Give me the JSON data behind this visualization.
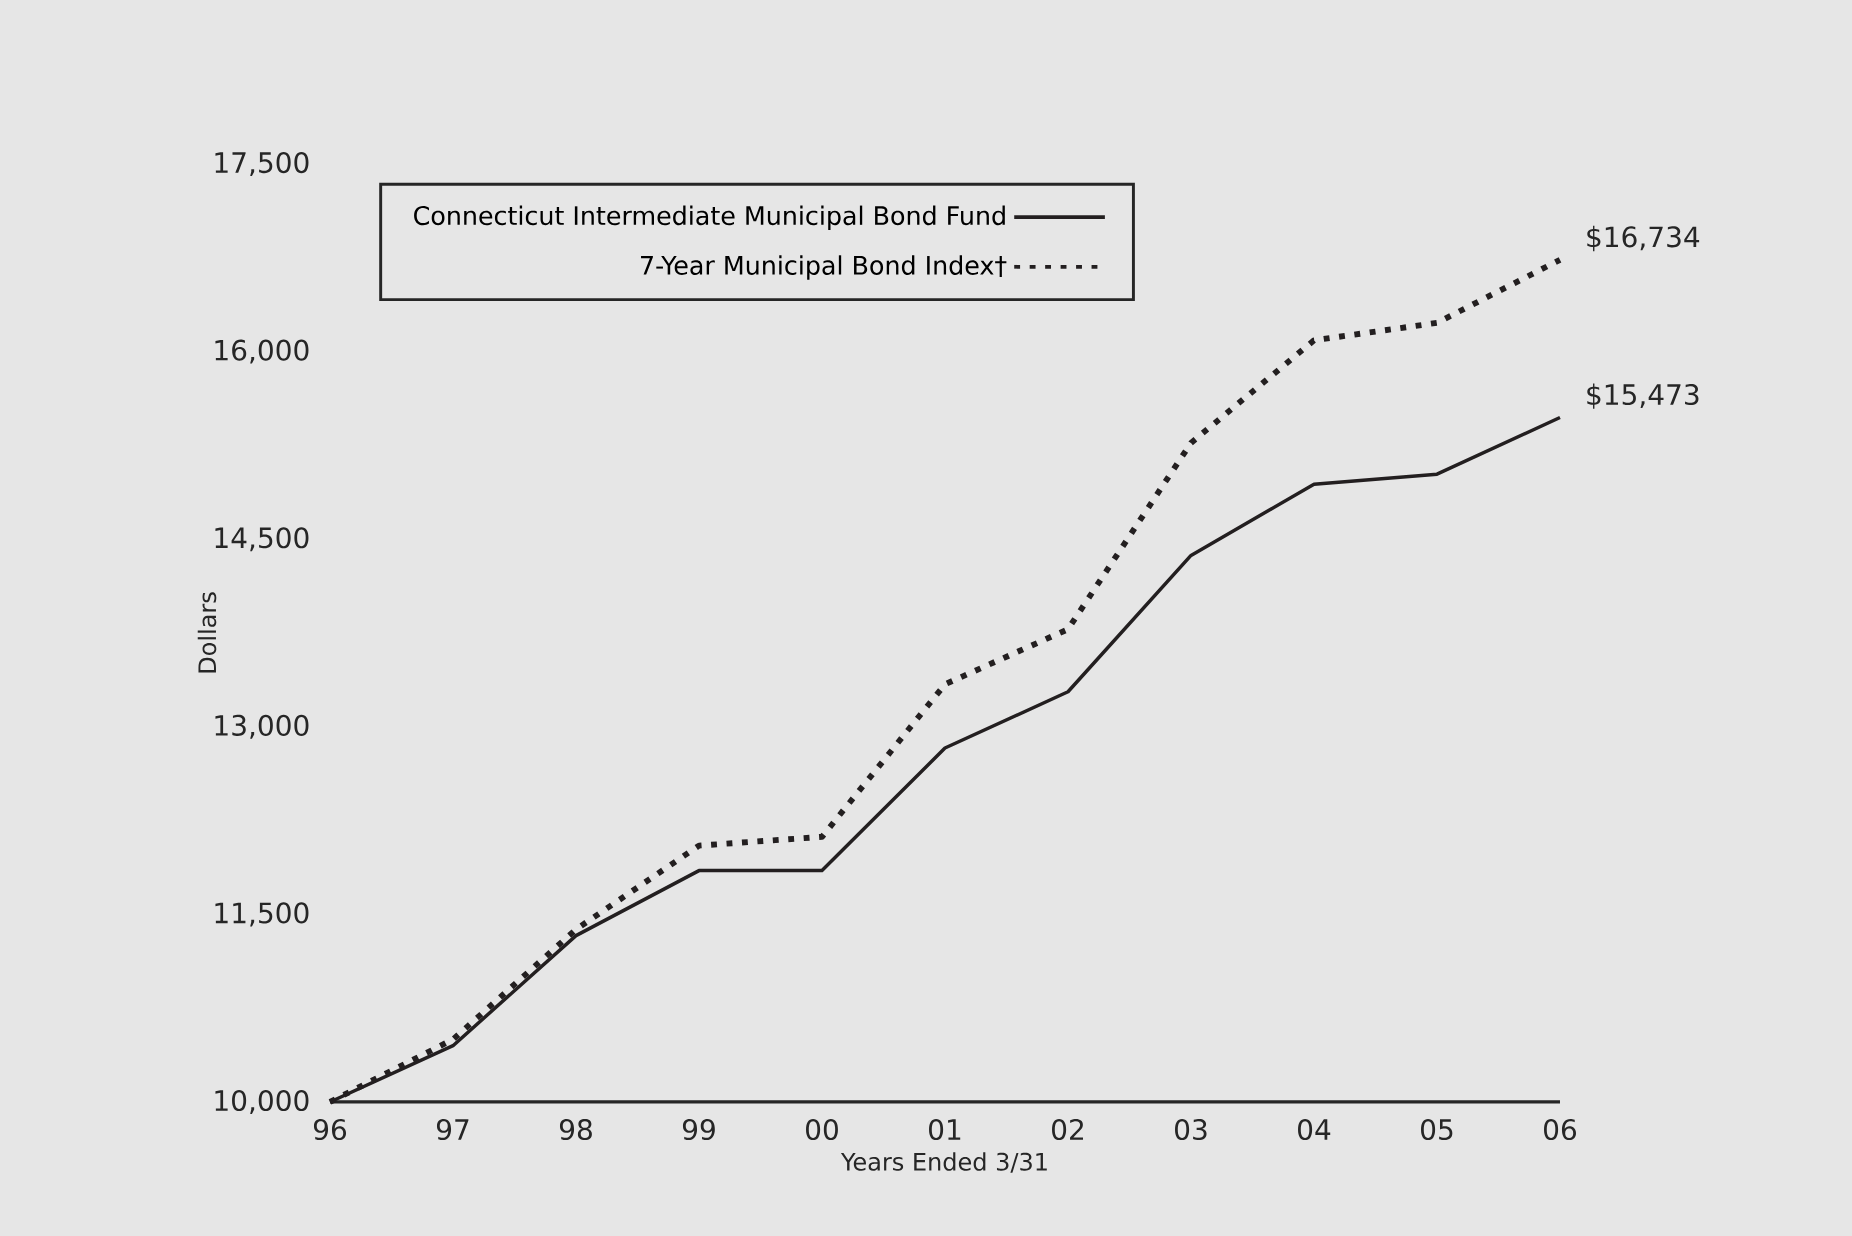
{
  "chart_data": {
    "type": "line",
    "xlabel": "Years Ended 3/31",
    "ylabel": "Dollars",
    "categories": [
      "96",
      "97",
      "98",
      "99",
      "00",
      "01",
      "02",
      "03",
      "04",
      "05",
      "06"
    ],
    "series": [
      {
        "name": "Connecticut Intermediate Municipal Bond Fund",
        "color": "#231f20",
        "line_style": "solid",
        "values": [
          10000,
          10450,
          11330,
          11850,
          11850,
          12830,
          13280,
          14370,
          14940,
          15020,
          15473
        ],
        "value_labels": [
          null,
          null,
          null,
          null,
          null,
          null,
          null,
          null,
          null,
          null,
          "$15,473"
        ]
      },
      {
        "name": "7-Year Municipal Bond Index†",
        "color": "#231f20",
        "line_style": "dotted",
        "values": [
          10000,
          10500,
          11380,
          12050,
          12120,
          13340,
          13780,
          15270,
          16090,
          16230,
          16734
        ],
        "value_labels": [
          null,
          null,
          null,
          null,
          null,
          null,
          null,
          null,
          null,
          null,
          "$16,734"
        ]
      }
    ],
    "ylim": [
      10000,
      17500
    ],
    "yticks": [
      {
        "value": 10000,
        "label": "10,000"
      },
      {
        "value": 11500,
        "label": "11,500"
      },
      {
        "value": 13000,
        "label": "13,000"
      },
      {
        "value": 14500,
        "label": "14,500"
      },
      {
        "value": 16000,
        "label": "16,000"
      },
      {
        "value": 17500,
        "label": "17,500"
      }
    ],
    "legend": "top left",
    "marker": "none"
  }
}
